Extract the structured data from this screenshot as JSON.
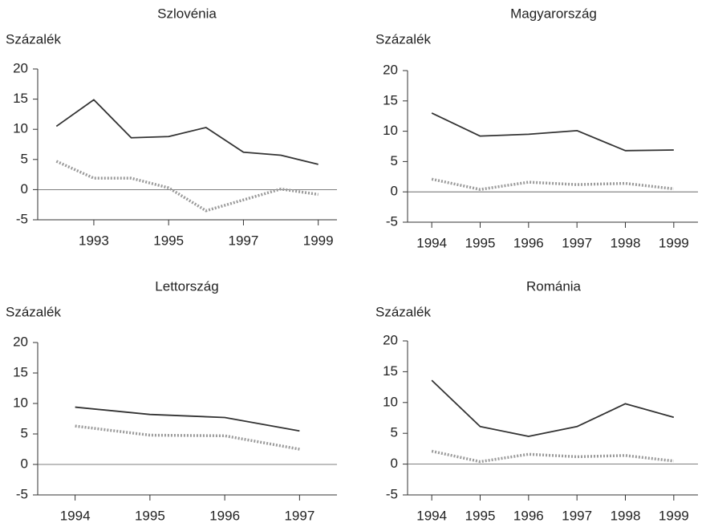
{
  "chart_data": [
    {
      "type": "line",
      "title": "Szlovénia",
      "y_label": "Százalék",
      "x": [
        1992,
        1993,
        1994,
        1995,
        1996,
        1997,
        1998,
        1999
      ],
      "xlim": [
        1991.5,
        1999.5
      ],
      "xticks": [
        1993,
        1995,
        1997,
        1999
      ],
      "ylim": [
        -5,
        20
      ],
      "yticks": [
        -5,
        0,
        5,
        10,
        15,
        20
      ],
      "series": [
        {
          "color": "#333333",
          "style": "solid",
          "values": [
            10.5,
            14.9,
            8.6,
            8.8,
            10.3,
            6.2,
            5.7,
            4.2
          ]
        },
        {
          "color": "#9a9a9a",
          "style": "dotted",
          "values": [
            4.7,
            1.9,
            1.9,
            0.3,
            -3.5,
            -1.7,
            0.1,
            -0.8
          ]
        }
      ]
    },
    {
      "type": "line",
      "title": "Magyarország",
      "y_label": "Százalék",
      "categories": [
        "1994",
        "1995",
        "1996",
        "1997",
        "1998",
        "1999"
      ],
      "ylim": [
        -5,
        20
      ],
      "yticks": [
        -5,
        0,
        5,
        10,
        15,
        20
      ],
      "series": [
        {
          "color": "#333333",
          "style": "solid",
          "values": [
            13.0,
            9.2,
            9.5,
            10.1,
            6.8,
            6.9
          ]
        },
        {
          "color": "#9a9a9a",
          "style": "dotted",
          "values": [
            2.1,
            0.4,
            1.6,
            1.2,
            1.4,
            0.5
          ]
        }
      ]
    },
    {
      "type": "line",
      "title": "Lettország",
      "y_label": "Százalék",
      "categories": [
        "1994",
        "1995",
        "1996",
        "1997"
      ],
      "ylim": [
        -5,
        20
      ],
      "yticks": [
        -5,
        0,
        5,
        10,
        15,
        20
      ],
      "series": [
        {
          "color": "#333333",
          "style": "solid",
          "values": [
            9.4,
            8.2,
            7.7,
            5.5
          ]
        },
        {
          "color": "#9a9a9a",
          "style": "dotted",
          "values": [
            6.3,
            4.8,
            4.7,
            2.5
          ]
        }
      ]
    },
    {
      "type": "line",
      "title": "Románia",
      "y_label": "Százalék",
      "categories": [
        "1994",
        "1995",
        "1996",
        "1997",
        "1998",
        "1999"
      ],
      "ylim": [
        -5,
        20
      ],
      "yticks": [
        -5,
        0,
        5,
        10,
        15,
        20
      ],
      "series": [
        {
          "color": "#333333",
          "style": "solid",
          "values": [
            13.6,
            6.1,
            4.5,
            6.1,
            9.8,
            7.6
          ]
        },
        {
          "color": "#9a9a9a",
          "style": "dotted",
          "values": [
            2.1,
            0.4,
            1.6,
            1.2,
            1.4,
            0.5
          ]
        }
      ]
    }
  ]
}
